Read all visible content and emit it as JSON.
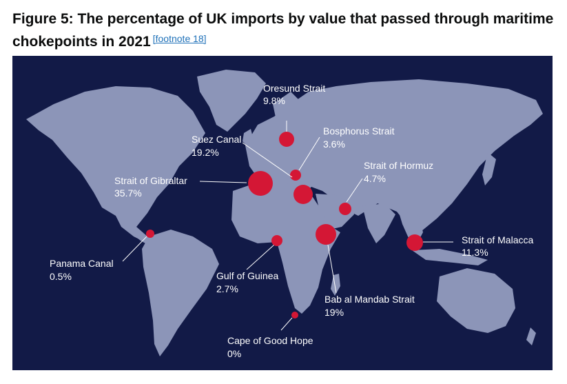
{
  "figure": {
    "title": "Figure 5: The percentage of UK imports by value that passed through maritime chokepoints in 2021",
    "footnote_label": "[footnote 18]"
  },
  "colors": {
    "ocean": "#121a47",
    "land": "#8c95b8",
    "bubble": "#d41735",
    "label": "#ffffff"
  },
  "chart_data": {
    "type": "bubble-map",
    "unit": "%",
    "points": [
      {
        "name": "Oresund Strait",
        "value_label": "9.8%",
        "value": 9.8
      },
      {
        "name": "Bosphorus Strait",
        "value_label": "3.6%",
        "value": 3.6
      },
      {
        "name": "Suez Canal",
        "value_label": "19.2%",
        "value": 19.2
      },
      {
        "name": "Strait of Hormuz",
        "value_label": "4.7%",
        "value": 4.7
      },
      {
        "name": "Strait of Gibraltar",
        "value_label": "35.7%",
        "value": 35.7
      },
      {
        "name": "Strait of Malacca",
        "value_label": "11.3%",
        "value": 11.3
      },
      {
        "name": "Panama Canal",
        "value_label": "0.5%",
        "value": 0.5
      },
      {
        "name": "Gulf of Guinea",
        "value_label": "2.7%",
        "value": 2.7
      },
      {
        "name": "Bab al Mandab Strait",
        "value_label": "19%",
        "value": 19
      },
      {
        "name": "Cape of Good Hope",
        "value_label": "0%",
        "value": 0
      }
    ]
  }
}
